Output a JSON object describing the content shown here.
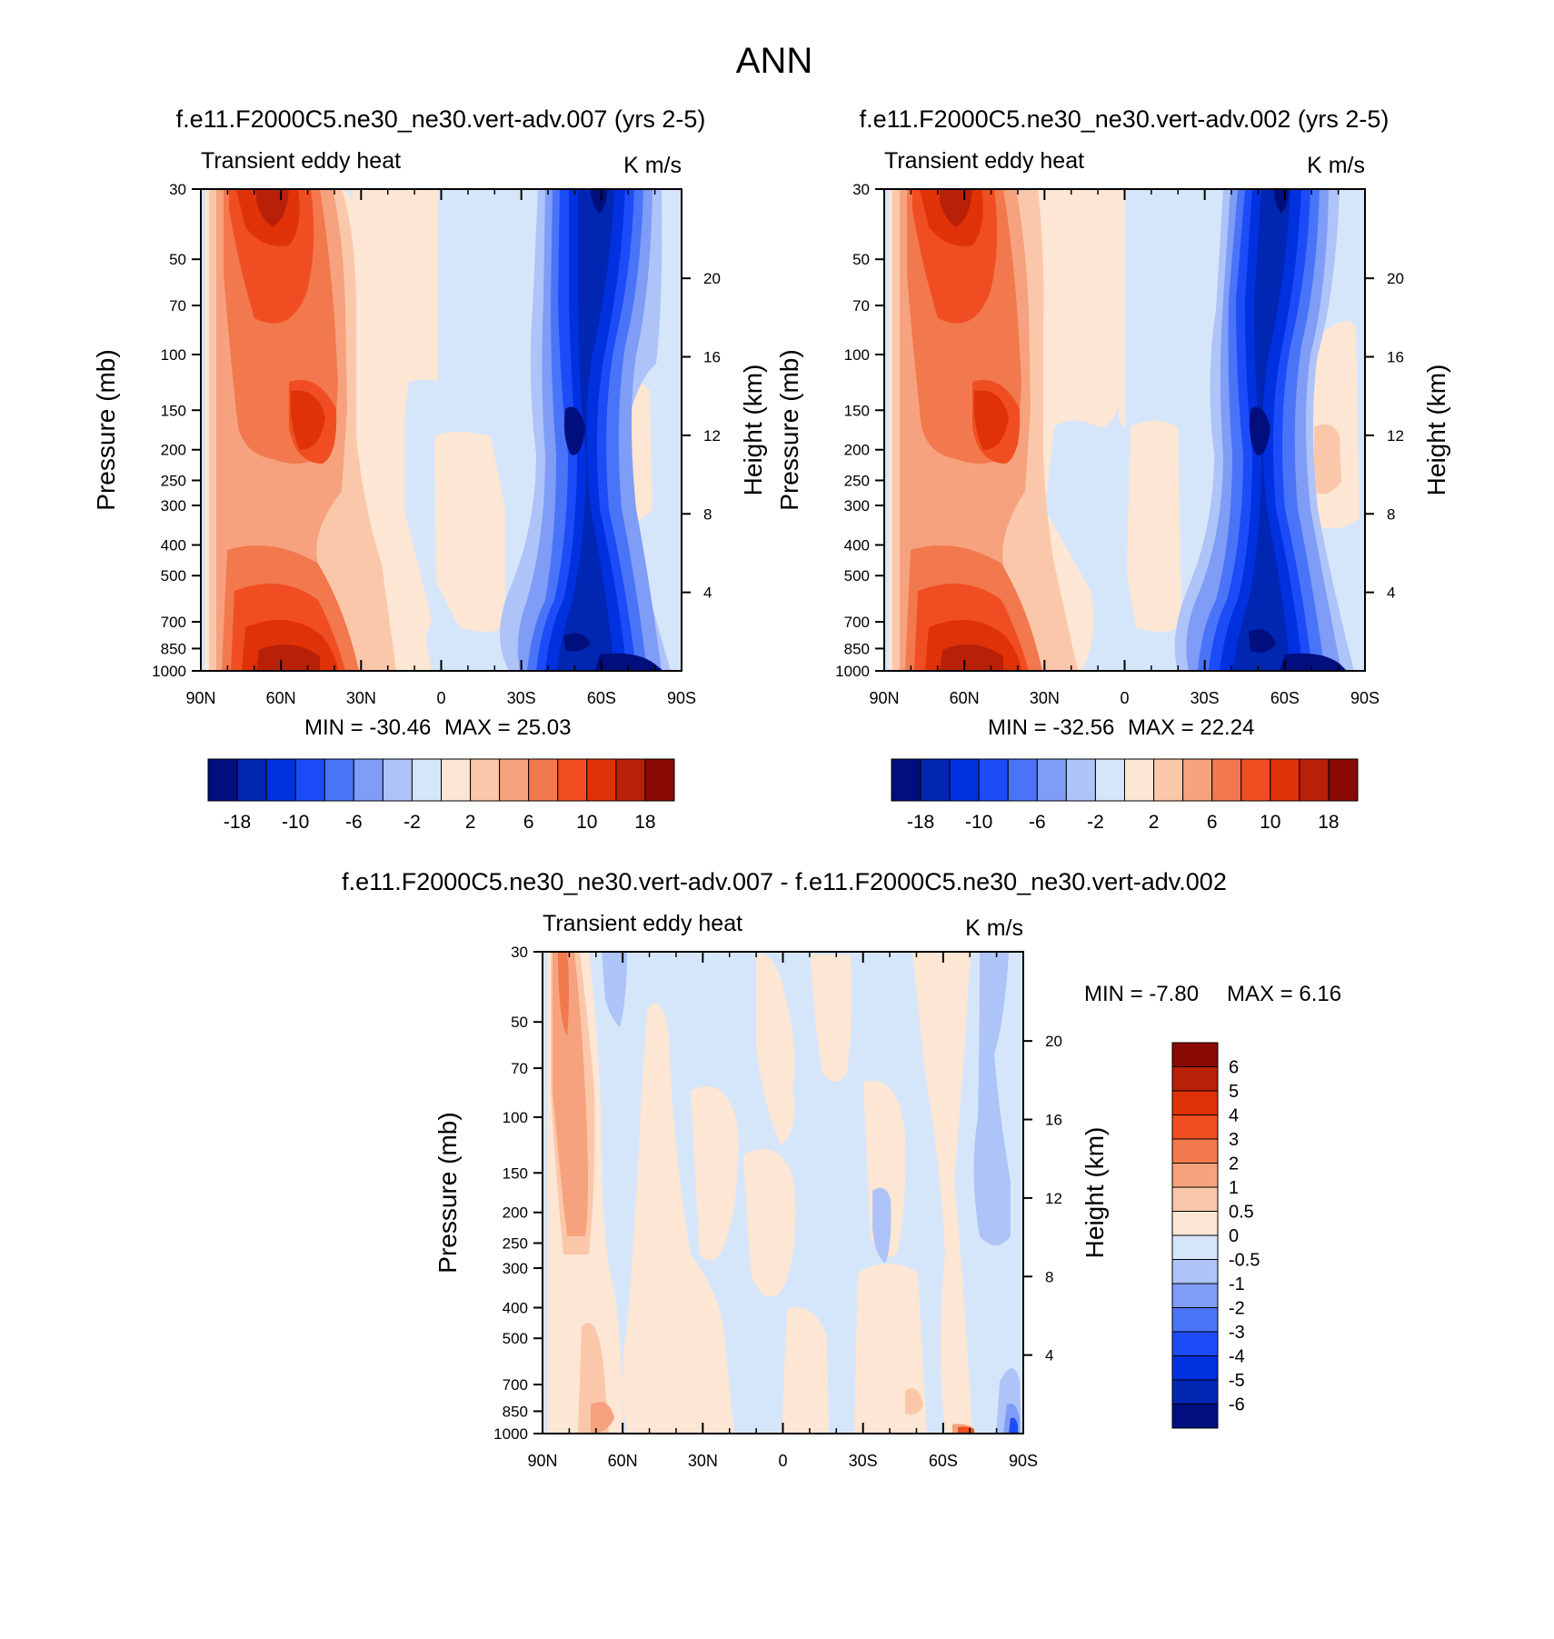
{
  "page_title": "ANN",
  "chart_data": [
    {
      "type": "heatmap",
      "id": "p1",
      "title": "f.e11.F2000C5.ne30_ne30.vert-adv.007 (yrs 2-5)",
      "left_label": "Transient eddy heat",
      "right_label": "K m/s",
      "ylabel": "Pressure (mb)",
      "ylabel_right": "Height (km)",
      "xticks": [
        "90N",
        "60N",
        "30N",
        "0",
        "30S",
        "60S",
        "90S"
      ],
      "yticks": [
        "30",
        "50",
        "70",
        "100",
        "150",
        "200",
        "250",
        "300",
        "400",
        "500",
        "700",
        "850",
        "1000"
      ],
      "height_ticks": [
        "4",
        "8",
        "12",
        "16",
        "20"
      ],
      "min_label": "MIN = -30.46",
      "max_label": "MAX =  25.03",
      "colorbar_labels": [
        "-18",
        "-10",
        "-6",
        "-2",
        "2",
        "6",
        "10",
        "18"
      ]
    },
    {
      "type": "heatmap",
      "id": "p2",
      "title": "f.e11.F2000C5.ne30_ne30.vert-adv.002 (yrs 2-5)",
      "left_label": "Transient eddy heat",
      "right_label": "K m/s",
      "ylabel": "Pressure (mb)",
      "ylabel_right": "Height (km)",
      "xticks": [
        "90N",
        "60N",
        "30N",
        "0",
        "30S",
        "60S",
        "90S"
      ],
      "yticks": [
        "30",
        "50",
        "70",
        "100",
        "150",
        "200",
        "250",
        "300",
        "400",
        "500",
        "700",
        "850",
        "1000"
      ],
      "height_ticks": [
        "4",
        "8",
        "12",
        "16",
        "20"
      ],
      "min_label": "MIN = -32.56",
      "max_label": "MAX =  22.24",
      "colorbar_labels": [
        "-18",
        "-10",
        "-6",
        "-2",
        "2",
        "6",
        "10",
        "18"
      ]
    },
    {
      "type": "heatmap",
      "id": "p3",
      "title": "f.e11.F2000C5.ne30_ne30.vert-adv.007 - f.e11.F2000C5.ne30_ne30.vert-adv.002",
      "left_label": "Transient eddy heat",
      "right_label": "K m/s",
      "ylabel": "Pressure (mb)",
      "ylabel_right": "Height (km)",
      "xticks": [
        "90N",
        "60N",
        "30N",
        "0",
        "30S",
        "60S",
        "90S"
      ],
      "yticks": [
        "30",
        "50",
        "70",
        "100",
        "150",
        "200",
        "250",
        "300",
        "400",
        "500",
        "700",
        "850",
        "1000"
      ],
      "height_ticks": [
        "4",
        "8",
        "12",
        "16",
        "20"
      ],
      "min_label": "MIN =  -7.80",
      "max_label": "MAX =   6.16",
      "colorbar_labels": [
        "6",
        "5",
        "4",
        "3",
        "2",
        "1",
        "0.5",
        "0",
        "-0.5",
        "-1",
        "-2",
        "-3",
        "-4",
        "-5",
        "-6"
      ]
    }
  ],
  "colors": {
    "scale": [
      "#000e7e",
      "#0026b2",
      "#0031e0",
      "#1c4cf8",
      "#4a74f8",
      "#7f9cf6",
      "#aec3f8",
      "#d6e6fa",
      "#fde6d4",
      "#fbc7aa",
      "#f6a27e",
      "#f2784e",
      "#f04e22",
      "#e03208",
      "#b82008",
      "#8a0a06"
    ]
  }
}
